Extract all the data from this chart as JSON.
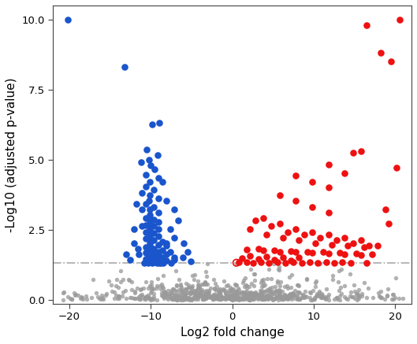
{
  "title": "",
  "xlabel": "Log2 fold change",
  "ylabel": "-Log10 (adjusted p-value)",
  "xlim": [
    -22,
    22
  ],
  "ylim": [
    -0.15,
    10.5
  ],
  "xticks": [
    -20,
    -10,
    0,
    10,
    20
  ],
  "yticks": [
    0.0,
    2.5,
    5.0,
    7.5,
    10.0
  ],
  "significance_threshold": 1.3,
  "background_color": "#ffffff",
  "gray_color": "#999999",
  "blue_color": "#1a55cc",
  "red_color": "#ee1111",
  "marker_size": 38,
  "gray_marker_size": 15,
  "seed": 42,
  "blue_points": [
    [
      -20.2,
      10.0
    ],
    [
      -13.2,
      8.3
    ],
    [
      -9.8,
      6.25
    ],
    [
      -9.0,
      6.3
    ],
    [
      -10.5,
      5.35
    ],
    [
      -9.2,
      5.15
    ],
    [
      -10.2,
      5.0
    ],
    [
      -11.2,
      4.9
    ],
    [
      -10.0,
      4.8
    ],
    [
      -9.5,
      4.65
    ],
    [
      -10.6,
      4.45
    ],
    [
      -9.1,
      4.35
    ],
    [
      -10.1,
      4.2
    ],
    [
      -10.6,
      4.05
    ],
    [
      -9.6,
      3.92
    ],
    [
      -11.1,
      3.82
    ],
    [
      -10.1,
      3.72
    ],
    [
      -9.1,
      3.62
    ],
    [
      -10.2,
      3.52
    ],
    [
      -10.6,
      3.42
    ],
    [
      -9.6,
      3.32
    ],
    [
      -10.1,
      3.22
    ],
    [
      -9.1,
      3.12
    ],
    [
      -10.1,
      3.02
    ],
    [
      -10.6,
      2.92
    ],
    [
      -9.6,
      2.87
    ],
    [
      -10.1,
      2.82
    ],
    [
      -9.1,
      2.77
    ],
    [
      -10.1,
      2.72
    ],
    [
      -10.6,
      2.67
    ],
    [
      -9.6,
      2.62
    ],
    [
      -10.1,
      2.57
    ],
    [
      -9.1,
      2.52
    ],
    [
      -10.1,
      2.47
    ],
    [
      -10.6,
      2.42
    ],
    [
      -9.6,
      2.37
    ],
    [
      -10.1,
      2.32
    ],
    [
      -9.1,
      2.27
    ],
    [
      -10.1,
      2.22
    ],
    [
      -10.6,
      2.17
    ],
    [
      -9.6,
      2.12
    ],
    [
      -8.6,
      2.07
    ],
    [
      -10.1,
      2.02
    ],
    [
      -9.1,
      1.97
    ],
    [
      -10.1,
      1.92
    ],
    [
      -10.6,
      1.87
    ],
    [
      -9.6,
      1.82
    ],
    [
      -8.6,
      1.77
    ],
    [
      -10.1,
      1.74
    ],
    [
      -9.1,
      1.72
    ],
    [
      -10.1,
      1.7
    ],
    [
      -10.6,
      1.67
    ],
    [
      -9.6,
      1.64
    ],
    [
      -8.1,
      1.62
    ],
    [
      -9.1,
      1.6
    ],
    [
      -10.1,
      1.57
    ],
    [
      -9.6,
      1.54
    ],
    [
      -8.6,
      1.52
    ],
    [
      -9.1,
      1.5
    ],
    [
      -10.1,
      1.47
    ],
    [
      -10.6,
      1.45
    ],
    [
      -9.1,
      1.43
    ],
    [
      -9.6,
      1.41
    ],
    [
      -8.1,
      1.39
    ],
    [
      -10.1,
      1.37
    ],
    [
      -9.6,
      1.35
    ],
    [
      -9.1,
      1.33
    ],
    [
      -7.6,
      2.52
    ],
    [
      -7.1,
      2.22
    ],
    [
      -8.1,
      1.92
    ],
    [
      -7.6,
      1.72
    ],
    [
      -6.1,
      1.52
    ],
    [
      -7.1,
      1.42
    ],
    [
      -8.6,
      1.37
    ],
    [
      -5.1,
      1.37
    ],
    [
      -11.1,
      2.62
    ],
    [
      -12.1,
      2.02
    ],
    [
      -11.6,
      1.82
    ],
    [
      -8.1,
      3.52
    ],
    [
      -7.1,
      3.22
    ],
    [
      -6.6,
      2.82
    ],
    [
      -8.6,
      4.22
    ],
    [
      -11.1,
      3.22
    ],
    [
      -12.1,
      2.52
    ],
    [
      -8.1,
      2.02
    ],
    [
      -7.1,
      1.52
    ],
    [
      -9.3,
      1.32
    ],
    [
      -10.3,
      1.31
    ],
    [
      -8.8,
      1.32
    ],
    [
      -9.8,
      1.31
    ],
    [
      -10.8,
      1.32
    ],
    [
      -9.0,
      1.3
    ],
    [
      -8.5,
      1.31
    ],
    [
      -7.5,
      1.31
    ],
    [
      -11.5,
      1.62
    ],
    [
      -12.5,
      1.42
    ],
    [
      -6.0,
      2.02
    ],
    [
      -5.5,
      1.72
    ],
    [
      -13.0,
      1.62
    ],
    [
      -11.8,
      3.42
    ]
  ],
  "red_points": [
    [
      20.5,
      10.0
    ],
    [
      16.5,
      9.8
    ],
    [
      18.2,
      8.8
    ],
    [
      19.5,
      8.5
    ],
    [
      15.8,
      5.3
    ],
    [
      14.8,
      5.25
    ],
    [
      11.8,
      4.82
    ],
    [
      13.8,
      4.52
    ],
    [
      20.2,
      4.7
    ],
    [
      7.8,
      4.42
    ],
    [
      9.8,
      4.22
    ],
    [
      11.8,
      4.02
    ],
    [
      5.8,
      3.72
    ],
    [
      7.8,
      3.52
    ],
    [
      9.8,
      3.32
    ],
    [
      11.8,
      3.12
    ],
    [
      3.8,
      2.92
    ],
    [
      5.8,
      2.72
    ],
    [
      7.8,
      2.52
    ],
    [
      9.8,
      2.42
    ],
    [
      11.8,
      2.32
    ],
    [
      13.8,
      2.22
    ],
    [
      15.8,
      2.12
    ],
    [
      17.8,
      1.92
    ],
    [
      2.8,
      2.82
    ],
    [
      4.8,
      2.62
    ],
    [
      6.8,
      2.42
    ],
    [
      8.8,
      2.32
    ],
    [
      10.8,
      2.22
    ],
    [
      12.8,
      2.12
    ],
    [
      14.8,
      2.02
    ],
    [
      16.8,
      1.92
    ],
    [
      2.2,
      2.52
    ],
    [
      4.2,
      2.32
    ],
    [
      6.2,
      2.22
    ],
    [
      8.2,
      2.12
    ],
    [
      10.2,
      2.02
    ],
    [
      12.2,
      1.97
    ],
    [
      14.2,
      1.92
    ],
    [
      16.2,
      1.87
    ],
    [
      3.2,
      1.82
    ],
    [
      5.2,
      1.77
    ],
    [
      7.2,
      1.74
    ],
    [
      9.2,
      1.72
    ],
    [
      11.2,
      1.7
    ],
    [
      13.2,
      1.67
    ],
    [
      15.2,
      1.64
    ],
    [
      17.2,
      1.62
    ],
    [
      1.8,
      1.78
    ],
    [
      3.8,
      1.75
    ],
    [
      5.8,
      1.72
    ],
    [
      7.8,
      1.7
    ],
    [
      9.8,
      1.67
    ],
    [
      11.8,
      1.64
    ],
    [
      13.8,
      1.62
    ],
    [
      15.8,
      1.6
    ],
    [
      2.2,
      1.57
    ],
    [
      4.2,
      1.54
    ],
    [
      6.2,
      1.52
    ],
    [
      8.2,
      1.5
    ],
    [
      1.2,
      1.47
    ],
    [
      3.2,
      1.45
    ],
    [
      5.2,
      1.43
    ],
    [
      7.2,
      1.4
    ],
    [
      18.8,
      3.22
    ],
    [
      19.2,
      2.72
    ],
    [
      1.8,
      1.35
    ],
    [
      3.5,
      1.35
    ],
    [
      5.5,
      1.35
    ],
    [
      7.5,
      1.35
    ],
    [
      9.5,
      1.35
    ],
    [
      11.5,
      1.35
    ],
    [
      13.5,
      1.35
    ],
    [
      2.5,
      1.32
    ],
    [
      4.5,
      1.32
    ],
    [
      6.5,
      1.32
    ],
    [
      8.5,
      1.32
    ],
    [
      10.5,
      1.32
    ],
    [
      12.5,
      1.32
    ],
    [
      14.5,
      1.32
    ],
    [
      16.5,
      1.32
    ],
    [
      0.8,
      1.35
    ]
  ],
  "n_gray": 600
}
